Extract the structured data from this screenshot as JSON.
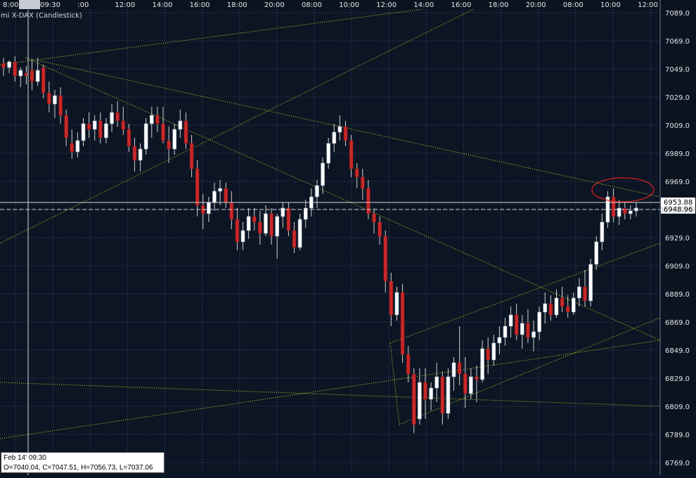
{
  "chart": {
    "instrument": "mi X-DAX (Candlestick)",
    "price_ticks": [
      "7089.0",
      "7069.0",
      "7049.0",
      "7029.0",
      "7009.0",
      "6989.0",
      "6969.0",
      "6949.0",
      "6929.0",
      "6909.0",
      "6889.0",
      "6869.0",
      "6849.0",
      "6829.0",
      "6809.0",
      "6789.0",
      "6769.0"
    ],
    "time_ticks": [
      "8:00",
      "09:30",
      ":00",
      "12:00",
      "14:00",
      "16:00",
      "18:00",
      "20:00",
      "08:00",
      "10:00",
      "12:00",
      "14:00",
      "16:00",
      "18:00",
      "20:00",
      "08:00",
      "10:00",
      "12:00"
    ],
    "crosshair_time_label": "09:30",
    "last_price_label": "6953.88",
    "prev_price_label": "6948.96",
    "ohlc_tooltip": {
      "date": "Feb 14' 09:30",
      "values": "O=7040.04, C=7047.51, H=7056.73, L=7037.06"
    },
    "colors": {
      "background": "#0c1524",
      "grid": "#3a4a66",
      "bull_body": "#ffffff",
      "bear_body": "#c8282a",
      "wick": "#d0d0d0",
      "trendline": "#c8d820",
      "annotation_circle": "#e02020",
      "axis_bg": "#0b1320"
    }
  },
  "chart_data": {
    "type": "candlestick",
    "title": "mi X-DAX (Candlestick)",
    "ylim": [
      6760,
      7098
    ],
    "y_ticks": [
      6769,
      6789,
      6809,
      6829,
      6849,
      6869,
      6889,
      6909,
      6929,
      6949,
      6969,
      6989,
      7009,
      7029,
      7049,
      7069,
      7089
    ],
    "x_ticks": [
      "8:00",
      "09:30",
      ":00",
      "12:00",
      "14:00",
      "16:00",
      "18:00",
      "20:00",
      "08:00",
      "10:00",
      "12:00",
      "14:00",
      "16:00",
      "18:00",
      "20:00",
      "08:00",
      "10:00",
      "12:00"
    ],
    "grid": true,
    "last_price": 6953.88,
    "prev_close_line": 6948.96,
    "candles": [
      [
        7053,
        7057,
        7044,
        7050
      ],
      [
        7050,
        7055,
        7046,
        7054
      ],
      [
        7054,
        7058,
        7040,
        7044
      ],
      [
        7044,
        7050,
        7036,
        7048
      ],
      [
        7046,
        7051,
        7038,
        7044
      ],
      [
        7048,
        7056,
        7034,
        7040
      ],
      [
        7040,
        7057,
        7037,
        7048
      ],
      [
        7050,
        7052,
        7028,
        7032
      ],
      [
        7032,
        7040,
        7018,
        7024
      ],
      [
        7024,
        7034,
        7014,
        7030
      ],
      [
        7030,
        7036,
        7010,
        7016
      ],
      [
        7016,
        7020,
        6994,
        7000
      ],
      [
        6996,
        7006,
        6985,
        6990
      ],
      [
        6990,
        7004,
        6986,
        6998
      ],
      [
        6998,
        7014,
        6994,
        7010
      ],
      [
        7010,
        7018,
        7000,
        7006
      ],
      [
        7006,
        7016,
        6998,
        7012
      ],
      [
        7012,
        7018,
        6996,
        7000
      ],
      [
        7000,
        7014,
        6996,
        7010
      ],
      [
        7010,
        7024,
        7004,
        7018
      ],
      [
        7018,
        7026,
        7008,
        7012
      ],
      [
        7012,
        7022,
        7002,
        7006
      ],
      [
        7006,
        7010,
        6990,
        6994
      ],
      [
        6994,
        7000,
        6976,
        6984
      ],
      [
        6984,
        6996,
        6976,
        6992
      ],
      [
        6992,
        7014,
        6988,
        7010
      ],
      [
        7010,
        7022,
        7000,
        7016
      ],
      [
        7016,
        7022,
        7004,
        7010
      ],
      [
        7010,
        7022,
        6996,
        6998
      ],
      [
        6998,
        7008,
        6982,
        6992
      ],
      [
        6992,
        7010,
        6988,
        7006
      ],
      [
        7006,
        7020,
        7000,
        7012
      ],
      [
        7012,
        7018,
        6992,
        6996
      ],
      [
        6996,
        7002,
        6972,
        6978
      ],
      [
        6978,
        6984,
        6944,
        6952
      ],
      [
        6952,
        6960,
        6935,
        6946
      ],
      [
        6946,
        6958,
        6940,
        6954
      ],
      [
        6954,
        6968,
        6948,
        6962
      ],
      [
        6962,
        6970,
        6952,
        6964
      ],
      [
        6964,
        6968,
        6950,
        6954
      ],
      [
        6954,
        6962,
        6935,
        6942
      ],
      [
        6942,
        6950,
        6920,
        6926
      ],
      [
        6926,
        6940,
        6920,
        6934
      ],
      [
        6934,
        6950,
        6928,
        6944
      ],
      [
        6944,
        6950,
        6934,
        6940
      ],
      [
        6940,
        6948,
        6924,
        6932
      ],
      [
        6932,
        6952,
        6930,
        6946
      ],
      [
        6946,
        6950,
        6924,
        6930
      ],
      [
        6930,
        6946,
        6914,
        6944
      ],
      [
        6944,
        6954,
        6936,
        6950
      ],
      [
        6950,
        6954,
        6930,
        6934
      ],
      [
        6934,
        6940,
        6918,
        6922
      ],
      [
        6922,
        6946,
        6920,
        6942
      ],
      [
        6942,
        6956,
        6936,
        6950
      ],
      [
        6950,
        6964,
        6944,
        6958
      ],
      [
        6958,
        6970,
        6950,
        6966
      ],
      [
        6966,
        6986,
        6960,
        6982
      ],
      [
        6982,
        7000,
        6978,
        6996
      ],
      [
        6996,
        7010,
        6990,
        7004
      ],
      [
        7004,
        7016,
        6998,
        7008
      ],
      [
        7008,
        7012,
        6994,
        6998
      ],
      [
        6998,
        7002,
        6972,
        6978
      ],
      [
        6978,
        6982,
        6964,
        6972
      ],
      [
        6972,
        6978,
        6956,
        6964
      ],
      [
        6964,
        6970,
        6942,
        6946
      ],
      [
        6946,
        6950,
        6932,
        6940
      ],
      [
        6940,
        6944,
        6924,
        6930
      ],
      [
        6930,
        6934,
        6890,
        6898
      ],
      [
        6898,
        6904,
        6866,
        6874
      ],
      [
        6874,
        6894,
        6870,
        6890
      ],
      [
        6890,
        6896,
        6840,
        6846
      ],
      [
        6846,
        6852,
        6826,
        6832
      ],
      [
        6832,
        6836,
        6790,
        6796
      ],
      [
        6800,
        6836,
        6796,
        6826
      ],
      [
        6826,
        6836,
        6800,
        6814
      ],
      [
        6814,
        6826,
        6806,
        6822
      ],
      [
        6822,
        6840,
        6812,
        6830
      ],
      [
        6830,
        6834,
        6796,
        6804
      ],
      [
        6804,
        6836,
        6800,
        6830
      ],
      [
        6830,
        6844,
        6820,
        6840
      ],
      [
        6840,
        6866,
        6824,
        6832
      ],
      [
        6832,
        6844,
        6808,
        6818
      ],
      [
        6818,
        6836,
        6814,
        6830
      ],
      [
        6830,
        6838,
        6812,
        6828
      ],
      [
        6828,
        6856,
        6826,
        6850
      ],
      [
        6850,
        6858,
        6832,
        6842
      ],
      [
        6842,
        6860,
        6838,
        6854
      ],
      [
        6854,
        6866,
        6846,
        6858
      ],
      [
        6858,
        6872,
        6852,
        6866
      ],
      [
        6866,
        6880,
        6858,
        6874
      ],
      [
        6874,
        6882,
        6856,
        6860
      ],
      [
        6860,
        6874,
        6850,
        6868
      ],
      [
        6868,
        6878,
        6854,
        6858
      ],
      [
        6858,
        6870,
        6848,
        6862
      ],
      [
        6862,
        6880,
        6856,
        6876
      ],
      [
        6876,
        6890,
        6868,
        6882
      ],
      [
        6882,
        6888,
        6870,
        6874
      ],
      [
        6874,
        6892,
        6872,
        6886
      ],
      [
        6886,
        6894,
        6876,
        6880
      ],
      [
        6880,
        6888,
        6872,
        6876
      ],
      [
        6876,
        6890,
        6874,
        6886
      ],
      [
        6886,
        6900,
        6880,
        6894
      ],
      [
        6894,
        6906,
        6880,
        6884
      ],
      [
        6884,
        6914,
        6880,
        6910
      ],
      [
        6910,
        6930,
        6906,
        6926
      ],
      [
        6926,
        6946,
        6920,
        6940
      ],
      [
        6940,
        6962,
        6936,
        6958
      ],
      [
        6958,
        6964,
        6940,
        6944
      ],
      [
        6944,
        6956,
        6938,
        6950
      ],
      [
        6950,
        6954,
        6942,
        6946
      ],
      [
        6946,
        6952,
        6942,
        6948
      ],
      [
        6948,
        6954,
        6944,
        6950
      ]
    ],
    "candle_fields": [
      "open",
      "high",
      "low",
      "close"
    ]
  }
}
